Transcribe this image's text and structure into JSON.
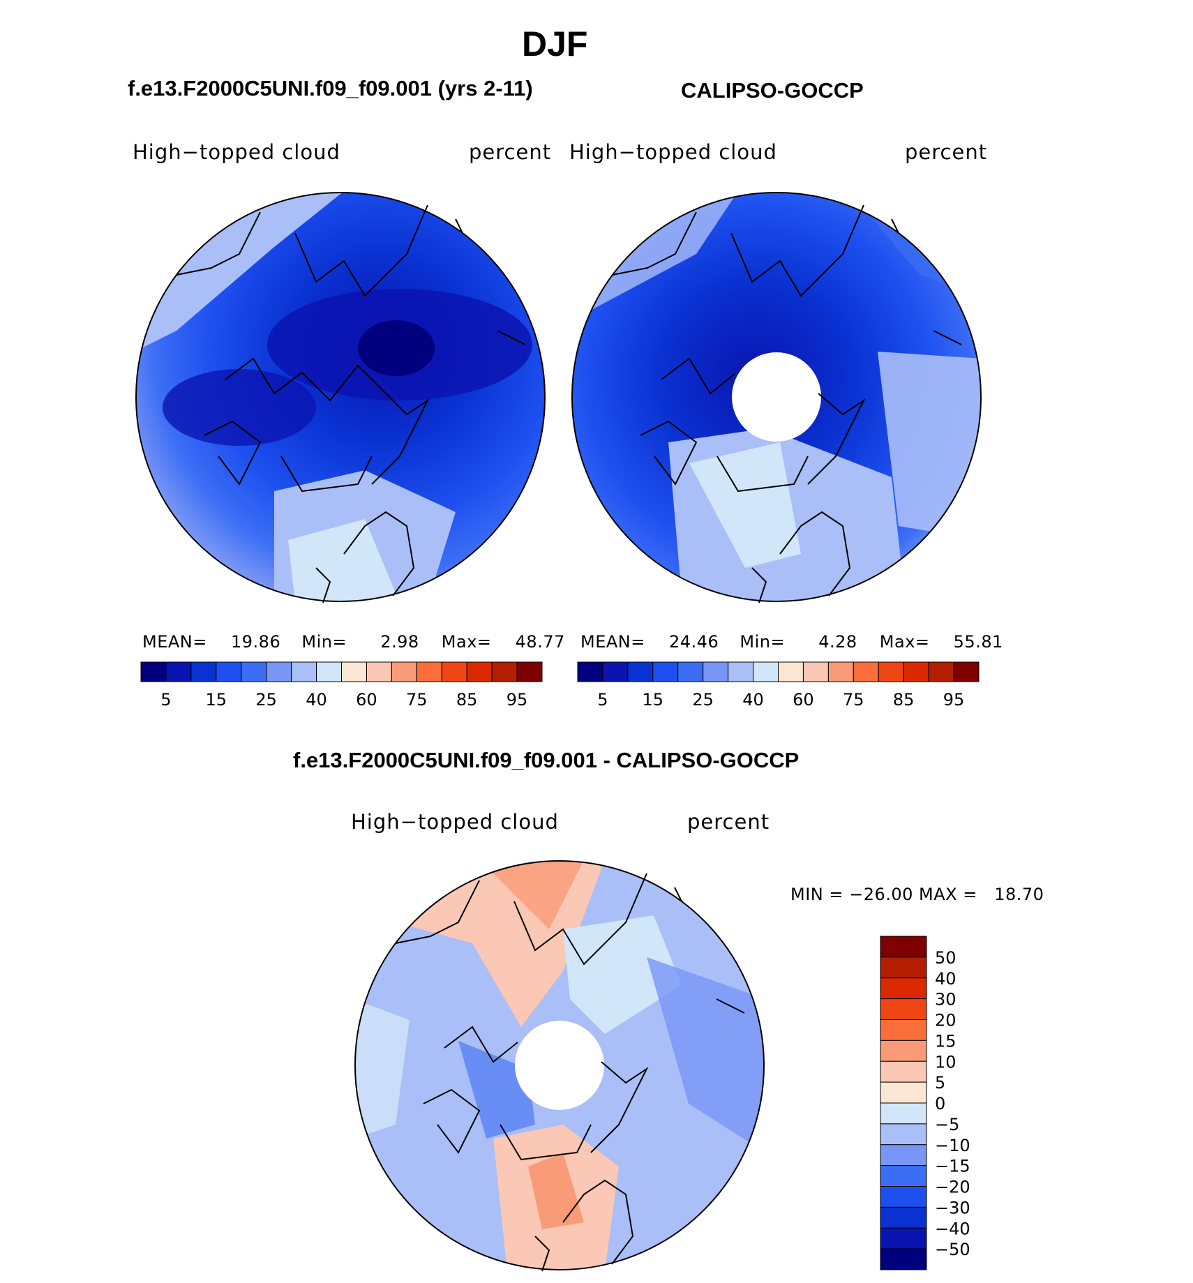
{
  "header": {
    "title": "DJF"
  },
  "panels": [
    {
      "case_title": "f.e13.F2000C5UNI.f09_f09.001 (yrs 2-11)",
      "variable": "High−topped cloud",
      "units": "percent",
      "stats": {
        "mean_label": "MEAN=",
        "mean": "19.86",
        "min_label": "Min=",
        "min": "2.98",
        "max_label": "Max=",
        "max": "48.77"
      }
    },
    {
      "case_title": "CALIPSO-GOCCP",
      "variable": "High−topped cloud",
      "units": "percent",
      "stats": {
        "mean_label": "MEAN=",
        "mean": "24.46",
        "min_label": "Min=",
        "min": "4.28",
        "max_label": "Max=",
        "max": "55.81"
      }
    }
  ],
  "diff_panel": {
    "case_title": "f.e13.F2000C5UNI.f09_f09.001 - CALIPSO-GOCCP",
    "variable": "High−topped cloud",
    "units": "percent",
    "minmax_text": "MIN = −26.00 MAX =   18.70"
  },
  "chart_data": [
    {
      "type": "heatmap",
      "projection": "north polar stereographic",
      "field": "High-topped cloud",
      "units": "percent",
      "mean": 19.86,
      "min": 2.98,
      "max": 48.77,
      "colorbar": {
        "orientation": "horizontal",
        "tick_labels": [
          "5",
          "15",
          "25",
          "40",
          "60",
          "75",
          "85",
          "95"
        ],
        "colors": [
          "#00007f",
          "#0a14b0",
          "#0a32d2",
          "#1e50f0",
          "#3c6ef5",
          "#7896f5",
          "#aabef8",
          "#d2e6fa",
          "#fae6d2",
          "#fac8b4",
          "#fa9b78",
          "#fa6e3c",
          "#f04614",
          "#dc2800",
          "#b41e00",
          "#7f0000"
        ]
      }
    },
    {
      "type": "heatmap",
      "projection": "north polar stereographic",
      "field": "High-topped cloud",
      "units": "percent",
      "mean": 24.46,
      "min": 4.28,
      "max": 55.81,
      "colorbar": {
        "orientation": "horizontal",
        "tick_labels": [
          "5",
          "15",
          "25",
          "40",
          "60",
          "75",
          "85",
          "95"
        ],
        "colors": [
          "#00007f",
          "#0a14b0",
          "#0a32d2",
          "#1e50f0",
          "#3c6ef5",
          "#7896f5",
          "#aabef8",
          "#d2e6fa",
          "#fae6d2",
          "#fac8b4",
          "#fa9b78",
          "#fa6e3c",
          "#f04614",
          "#dc2800",
          "#b41e00",
          "#7f0000"
        ]
      }
    },
    {
      "type": "heatmap",
      "projection": "north polar stereographic",
      "field": "High-topped cloud difference",
      "units": "percent",
      "min": -26.0,
      "max": 18.7,
      "colorbar": {
        "orientation": "vertical",
        "tick_labels": [
          "50",
          "40",
          "30",
          "20",
          "15",
          "10",
          "5",
          "0",
          "−5",
          "−10",
          "−15",
          "−20",
          "−30",
          "−40",
          "−50"
        ],
        "colors": [
          "#7f0000",
          "#b41e00",
          "#dc2800",
          "#f04614",
          "#fa6e3c",
          "#fa9b78",
          "#fac8b4",
          "#fae6d2",
          "#d2e6fa",
          "#aabef8",
          "#7896f5",
          "#3c6ef5",
          "#1e50f0",
          "#0a32d2",
          "#0a14b0",
          "#00007f"
        ]
      }
    }
  ]
}
